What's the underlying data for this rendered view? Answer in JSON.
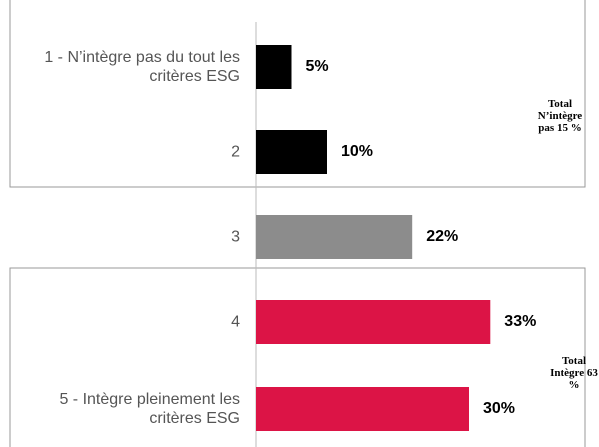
{
  "chart_data": {
    "type": "bar",
    "categories": [
      "1 - N’intègre pas du tout les critères ESG",
      "2",
      "3",
      "4",
      "5 - Intègre pleinement les critères ESG"
    ],
    "values": [
      5,
      10,
      22,
      33,
      30
    ],
    "value_labels": [
      "5%",
      "10%",
      "22%",
      "33%",
      "30%"
    ],
    "colors": [
      "#000000",
      "#000000",
      "#8c8c8c",
      "#dc1446",
      "#dc1446"
    ],
    "annotations": [
      "Total N’intègre pas 15 %",
      "Total Intègre 63 %"
    ]
  }
}
